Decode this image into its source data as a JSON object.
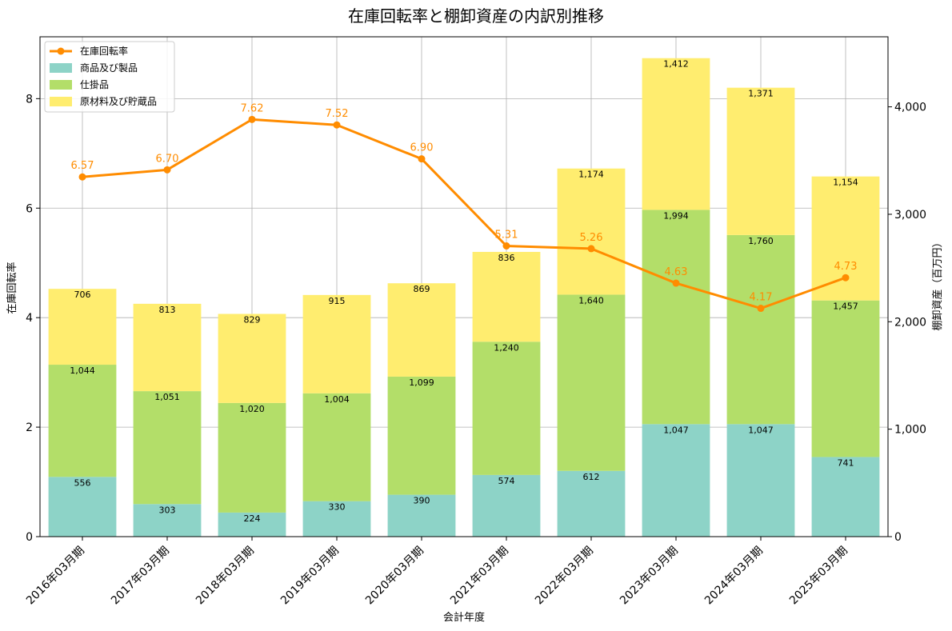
{
  "chart_data": {
    "type": "bar",
    "title": "在庫回転率と棚卸資産の内訳別推移",
    "xlabel": "会計年度",
    "ylabel_left": "在庫回転率",
    "ylabel_right": "棚卸資産（百万円）",
    "categories": [
      "2016年03月期",
      "2017年03月期",
      "2018年03月期",
      "2019年03月期",
      "2020年03月期",
      "2021年03月期",
      "2022年03月期",
      "2023年03月期",
      "2024年03月期",
      "2025年03月期"
    ],
    "series": [
      {
        "name": "商品及び製品",
        "type": "stacked-bar",
        "axis": "right",
        "color": "#8dd3c7",
        "values": [
          556,
          303,
          224,
          330,
          390,
          574,
          612,
          1047,
          1047,
          741
        ],
        "labels": [
          "556",
          "303",
          "224",
          "330",
          "390",
          "574",
          "612",
          "1,047",
          "1,047",
          "741"
        ]
      },
      {
        "name": "仕掛品",
        "type": "stacked-bar",
        "axis": "right",
        "color": "#b3de69",
        "values": [
          1044,
          1051,
          1020,
          1004,
          1099,
          1240,
          1640,
          1994,
          1760,
          1457
        ],
        "labels": [
          "1,044",
          "1,051",
          "1,020",
          "1,004",
          "1,099",
          "1,240",
          "1,640",
          "1,994",
          "1,760",
          "1,457"
        ]
      },
      {
        "name": "原材料及び貯蔵品",
        "type": "stacked-bar",
        "axis": "right",
        "color": "#ffed6f",
        "values": [
          706,
          813,
          829,
          915,
          869,
          836,
          1174,
          1412,
          1371,
          1154
        ],
        "labels": [
          "706",
          "813",
          "829",
          "915",
          "869",
          "836",
          "1,174",
          "1,412",
          "1,371",
          "1,154"
        ]
      },
      {
        "name": "在庫回転率",
        "type": "line",
        "axis": "left",
        "color": "#ff8c00",
        "values": [
          6.57,
          6.7,
          7.62,
          7.52,
          6.9,
          5.31,
          5.26,
          4.63,
          4.17,
          4.73
        ],
        "labels": [
          "6.57",
          "6.70",
          "7.62",
          "7.52",
          "6.90",
          "5.31",
          "5.26",
          "4.63",
          "4.17",
          "4.73"
        ]
      }
    ],
    "ylim_left": [
      0,
      9.13
    ],
    "ylim_right": [
      0,
      4652
    ],
    "yticks_left": [
      "0",
      "2",
      "4",
      "6",
      "8"
    ],
    "yticks_right": [
      "0",
      "1,000",
      "2,000",
      "3,000",
      "4,000"
    ],
    "grid": true,
    "legend_position": "upper-left"
  }
}
